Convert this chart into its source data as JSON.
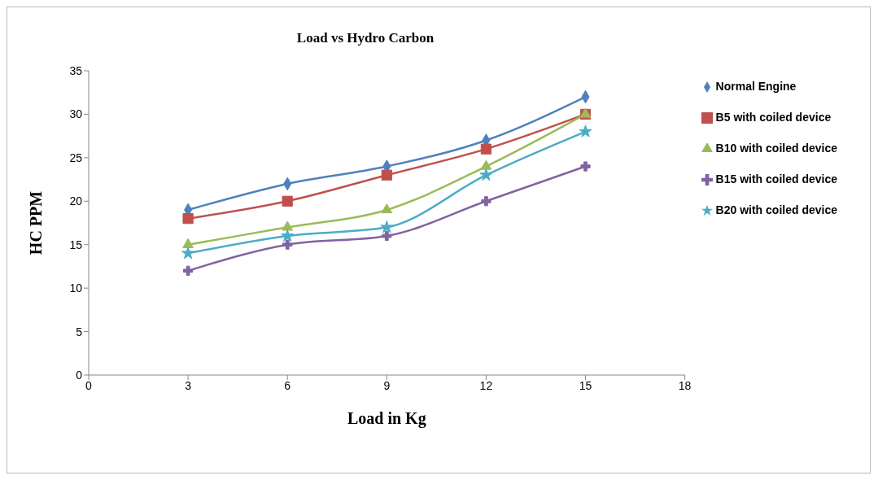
{
  "chart_data": {
    "type": "line",
    "title": "Load vs Hydro Carbon",
    "xlabel": "Load in Kg",
    "ylabel": "HC PPM",
    "x": [
      3,
      6,
      9,
      12,
      15
    ],
    "series": [
      {
        "name": "Normal Engine",
        "color": "#4f81bd",
        "marker": "diamond",
        "values": [
          19,
          22,
          24,
          27,
          32
        ]
      },
      {
        "name": "B5 with coiled device",
        "color": "#c0504d",
        "marker": "square",
        "values": [
          18,
          20,
          23,
          26,
          30
        ]
      },
      {
        "name": "B10 with coiled device",
        "color": "#9bbb59",
        "marker": "triangle",
        "values": [
          15,
          17,
          19,
          24,
          30
        ]
      },
      {
        "name": "B15 with coiled device",
        "color": "#8064a2",
        "marker": "cross",
        "values": [
          12,
          15,
          16,
          20,
          24
        ]
      },
      {
        "name": "B20 with coiled device",
        "color": "#4bacc6",
        "marker": "star",
        "values": [
          14,
          16,
          17,
          23,
          28
        ]
      }
    ],
    "xlim": [
      0,
      18
    ],
    "xticks": [
      0,
      3,
      6,
      9,
      12,
      15,
      18
    ],
    "ylim": [
      0,
      35
    ],
    "yticks": [
      0,
      5,
      10,
      15,
      20,
      25,
      30,
      35
    ],
    "grid": false,
    "legend": "right",
    "line_style": "solid"
  }
}
